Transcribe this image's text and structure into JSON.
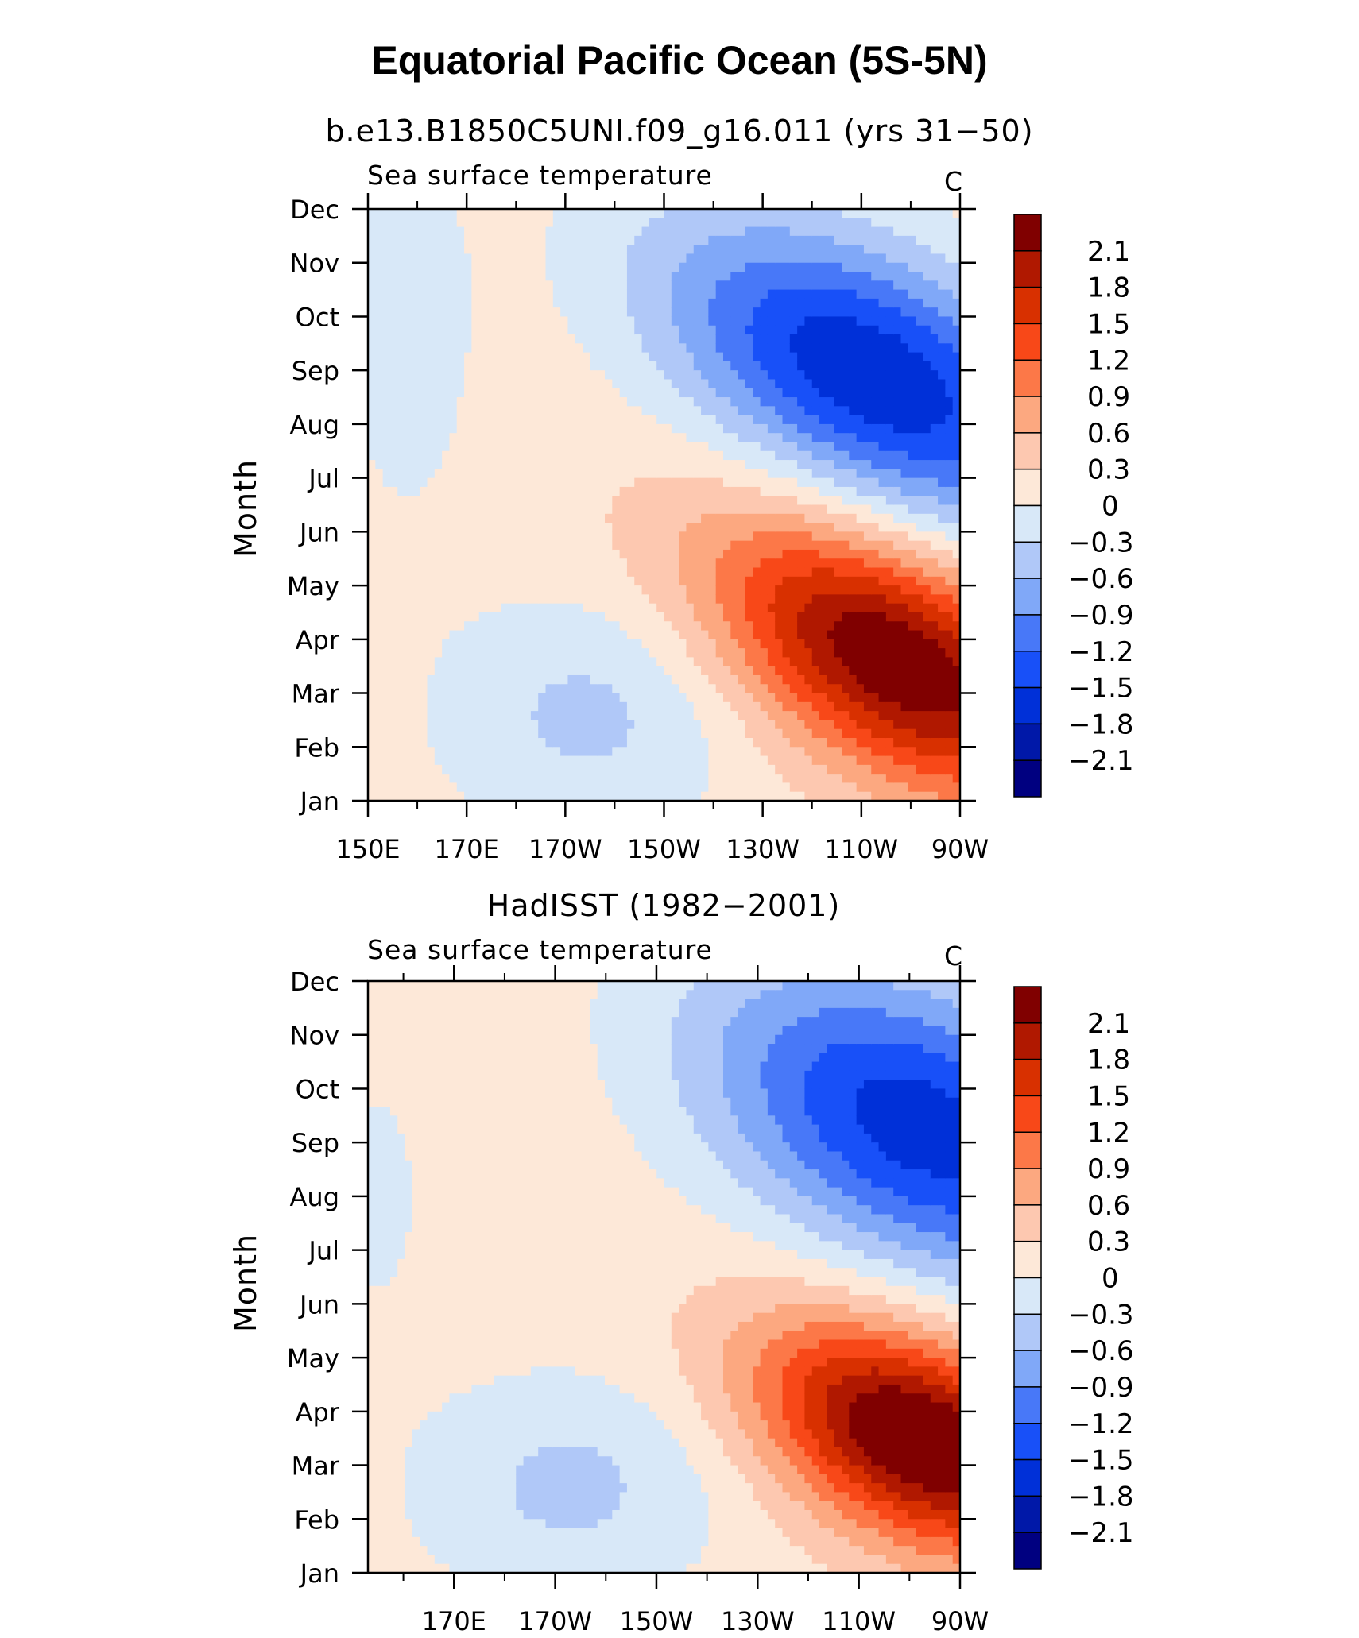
{
  "title": "Equatorial Pacific Ocean (5S-5N)",
  "colors": {
    "levels_fill": [
      "#000080",
      "#0018a8",
      "#0030d8",
      "#1850f8",
      "#4878f8",
      "#80a8f8",
      "#b0c8f8",
      "#d8e8f8",
      "#fde8d8",
      "#fdc8b0",
      "#fca880",
      "#fc7848",
      "#f84818",
      "#d83000",
      "#b01800",
      "#800000"
    ]
  },
  "chart_data": [
    {
      "type": "heatmap",
      "subtitle": "b.e13.B1850C5UNI.f09_g16.011 (yrs 31−50)",
      "title": "Sea surface temperature",
      "units": "C",
      "ylabel": "Month",
      "xlabel": "",
      "x_ticks": [
        "150E",
        "170E",
        "170W",
        "150W",
        "130W",
        "110W",
        "90W"
      ],
      "x_values": [
        150,
        170,
        190,
        210,
        230,
        250,
        270
      ],
      "xlim": [
        150,
        270
      ],
      "y_ticks": [
        "Jan",
        "Feb",
        "Mar",
        "Apr",
        "May",
        "Jun",
        "Jul",
        "Aug",
        "Sep",
        "Oct",
        "Nov",
        "Dec"
      ],
      "ylim": [
        1,
        12
      ],
      "levels": [
        "-2.1",
        "-1.8",
        "-1.5",
        "-1.2",
        "-0.9",
        "-0.6",
        "-0.3",
        "0",
        "0.3",
        "0.6",
        "0.9",
        "1.2",
        "1.5",
        "1.8",
        "2.1"
      ],
      "field": {
        "warm_center": {
          "lon": 257,
          "month": 3.6,
          "amp": 2.25,
          "lon_spread": 26,
          "month_spread": 1.5,
          "month_per_lon": -0.037
        },
        "cold_center": {
          "lon": 252,
          "month": 8.9,
          "amp": -1.95,
          "lon_spread": 30,
          "month_spread": 1.7,
          "month_per_lon": -0.035
        },
        "west_cold": {
          "lon": 195,
          "month": 2.6,
          "amp": -0.55,
          "lon_spread": 22,
          "month_spread": 1.6
        },
        "west_cold2": {
          "lon": 158,
          "month": 9.6,
          "amp": -0.35,
          "lon_spread": 10,
          "month_spread": 2.5
        }
      }
    },
    {
      "type": "heatmap",
      "subtitle": "HadISST (1982−2001)",
      "title": "Sea surface temperature",
      "units": "C",
      "ylabel": "Month",
      "xlabel": "",
      "x_ticks": [
        "170E",
        "170W",
        "150W",
        "130W",
        "110W",
        "90W"
      ],
      "x_values": [
        170,
        190,
        210,
        230,
        250,
        270
      ],
      "xlim": [
        153,
        270
      ],
      "y_ticks": [
        "Jan",
        "Feb",
        "Mar",
        "Apr",
        "May",
        "Jun",
        "Jul",
        "Aug",
        "Sep",
        "Oct",
        "Nov",
        "Dec"
      ],
      "ylim": [
        1,
        12
      ],
      "levels": [
        "-2.1",
        "-1.8",
        "-1.5",
        "-1.2",
        "-0.9",
        "-0.6",
        "-0.3",
        "0",
        "0.3",
        "0.6",
        "0.9",
        "1.2",
        "1.5",
        "1.8",
        "2.1"
      ],
      "field": {
        "warm_center": {
          "lon": 262,
          "month": 3.5,
          "amp": 2.4,
          "lon_spread": 22,
          "month_spread": 1.35,
          "month_per_lon": -0.03
        },
        "cold_center": {
          "lon": 262,
          "month": 9.3,
          "amp": -1.85,
          "lon_spread": 30,
          "month_spread": 1.9,
          "month_per_lon": -0.03
        },
        "west_cold": {
          "lon": 193,
          "month": 2.6,
          "amp": -0.55,
          "lon_spread": 22,
          "month_spread": 1.5
        },
        "west_cold2": {
          "lon": 155,
          "month": 8.0,
          "amp": -0.25,
          "lon_spread": 8,
          "month_spread": 2.0
        }
      }
    }
  ]
}
